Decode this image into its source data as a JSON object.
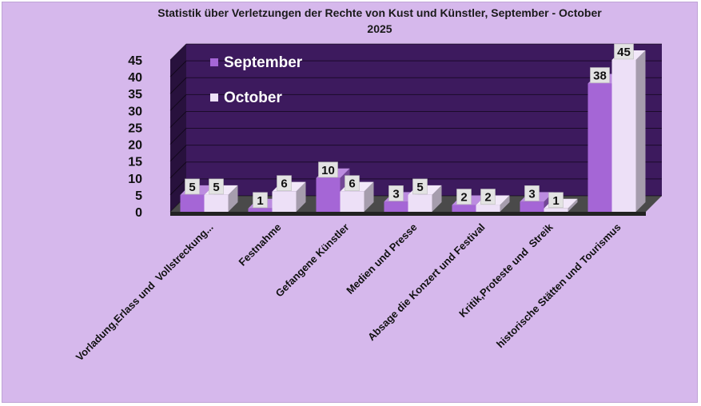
{
  "chart_data": {
    "type": "bar",
    "title": "Statistik über Verletzungen der Rechte von Kust und Künstler, September - October 2025",
    "categories": [
      "Vorladung,Erlass und  Vollstreckung...",
      "Festnahme",
      "Gefangene Künstler",
      "Medien und Presse",
      "Absage die Konzert und Festival",
      "Kritik,Proteste und  Streik",
      "historische Stätten und Tourismus"
    ],
    "series": [
      {
        "name": "September",
        "values": [
          5,
          1,
          10,
          3,
          2,
          3,
          38
        ]
      },
      {
        "name": "October",
        "values": [
          5,
          6,
          6,
          5,
          2,
          1,
          45
        ]
      }
    ],
    "yticks": [
      "0",
      "5",
      "10",
      "15",
      "20",
      "25",
      "30",
      "35",
      "40",
      "45"
    ],
    "ylim": [
      0,
      45
    ],
    "grid": true,
    "legend": "top-left",
    "colors": {
      "background": "#d6b8ec",
      "plot_wall": "#3d1a5e",
      "floor": "#4a4a4a",
      "september": "#a566d6",
      "october": "#ede0f7",
      "label_box": "#e3e3e3"
    }
  }
}
